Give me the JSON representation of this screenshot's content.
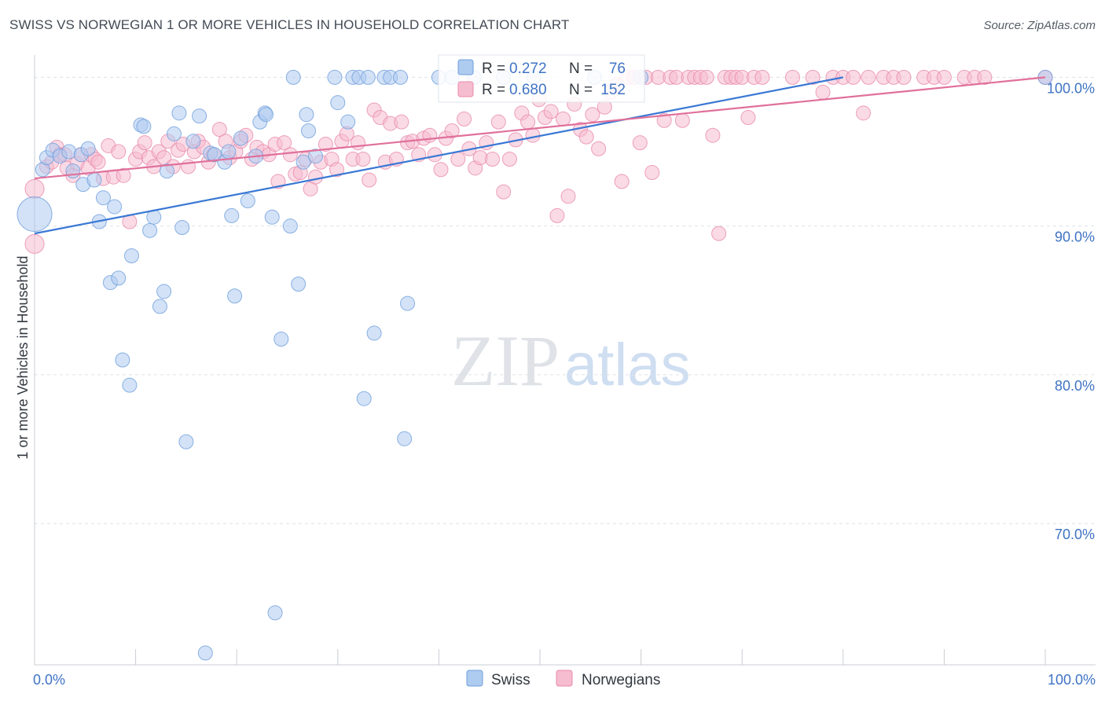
{
  "header": {
    "title": "SWISS VS NORWEGIAN 1 OR MORE VEHICLES IN HOUSEHOLD CORRELATION CHART",
    "source": "Source: ZipAtlas.com"
  },
  "watermark": {
    "part1": "ZIP",
    "part2": "atlas"
  },
  "colors": {
    "swiss_fill": "#aecbf0",
    "swiss_stroke": "#6f9fdc",
    "swiss_line": "#3a78d4",
    "norw_fill": "#f6bccf",
    "norw_stroke": "#e98aab",
    "norw_line": "#e0709a",
    "tick_text": "#3f73c4",
    "grid": "#dde1e6"
  },
  "chart_data": {
    "type": "scatter",
    "title": "SWISS VS NORWEGIAN 1 OR MORE VEHICLES IN HOUSEHOLD CORRELATION CHART",
    "xlabel": "",
    "ylabel": "1 or more Vehicles in Household",
    "xlim": [
      0,
      100
    ],
    "ylim": [
      60.5,
      101.5
    ],
    "x_tick_labels": [
      "0.0%",
      "100.0%"
    ],
    "y_ticks": [
      70,
      80,
      90,
      100
    ],
    "y_tick_labels": [
      "70.0%",
      "80.0%",
      "90.0%",
      "100.0%"
    ],
    "legend_position": "top-center",
    "stats": [
      {
        "series": "Swiss",
        "r_label": "R =",
        "r": "0.272",
        "n_label": "N =",
        "n": "76"
      },
      {
        "series": "Norwegians",
        "r_label": "R =",
        "r": "0.680",
        "n_label": "N =",
        "n": "152"
      }
    ],
    "series": [
      {
        "name": "Swiss",
        "trend": {
          "x": [
            0,
            80
          ],
          "y": [
            89.5,
            100.0
          ]
        },
        "points": [
          [
            0,
            90.8,
            22
          ],
          [
            0.8,
            93.8,
            9
          ],
          [
            1.2,
            94.6,
            9
          ],
          [
            1.8,
            95.1,
            9
          ],
          [
            2.5,
            94.7,
            9
          ],
          [
            3.4,
            95.0,
            9
          ],
          [
            4.6,
            94.8,
            9
          ],
          [
            5.3,
            95.2,
            9
          ],
          [
            3.8,
            93.7,
            9
          ],
          [
            4.8,
            92.8,
            9
          ],
          [
            5.9,
            93.1,
            9
          ],
          [
            6.4,
            90.3,
            9
          ],
          [
            6.8,
            91.9,
            9
          ],
          [
            7.5,
            86.2,
            9
          ],
          [
            7.9,
            91.3,
            9
          ],
          [
            8.3,
            86.5,
            9
          ],
          [
            8.7,
            81.0,
            9
          ],
          [
            9.4,
            79.3,
            9
          ],
          [
            9.6,
            88.0,
            9
          ],
          [
            10.5,
            96.8,
            9
          ],
          [
            10.8,
            96.7,
            9
          ],
          [
            11.4,
            89.7,
            9
          ],
          [
            11.8,
            90.6,
            9
          ],
          [
            12.4,
            84.6,
            9
          ],
          [
            12.8,
            85.6,
            9
          ],
          [
            13.1,
            93.7,
            9
          ],
          [
            13.8,
            96.2,
            9
          ],
          [
            14.3,
            97.6,
            9
          ],
          [
            14.6,
            89.9,
            9
          ],
          [
            15.0,
            75.5,
            9
          ],
          [
            15.7,
            95.7,
            9
          ],
          [
            16.3,
            97.4,
            9
          ],
          [
            16.9,
            61.3,
            9
          ],
          [
            17.4,
            94.9,
            9
          ],
          [
            17.8,
            94.8,
            9
          ],
          [
            18.8,
            94.3,
            9
          ],
          [
            19.2,
            95.0,
            9
          ],
          [
            19.5,
            90.7,
            9
          ],
          [
            19.8,
            85.3,
            9
          ],
          [
            20.4,
            95.9,
            9
          ],
          [
            21.1,
            91.7,
            9
          ],
          [
            21.9,
            94.7,
            9
          ],
          [
            22.3,
            97.0,
            9
          ],
          [
            22.8,
            97.6,
            9
          ],
          [
            22.9,
            97.5,
            9
          ],
          [
            23.5,
            90.6,
            9
          ],
          [
            23.8,
            64.0,
            9
          ],
          [
            24.4,
            82.4,
            9
          ],
          [
            25.3,
            90.0,
            9
          ],
          [
            25.6,
            100.0,
            9
          ],
          [
            26.1,
            86.1,
            9
          ],
          [
            26.6,
            94.3,
            9
          ],
          [
            26.9,
            97.5,
            9
          ],
          [
            27.1,
            96.4,
            9
          ],
          [
            27.8,
            94.7,
            9
          ],
          [
            29.7,
            100.0,
            9
          ],
          [
            30.0,
            98.3,
            9
          ],
          [
            31.0,
            97.0,
            9
          ],
          [
            31.5,
            100.0,
            9
          ],
          [
            32.1,
            100.0,
            9
          ],
          [
            32.6,
            78.4,
            9
          ],
          [
            33.0,
            100.0,
            9
          ],
          [
            33.6,
            82.8,
            9
          ],
          [
            34.6,
            100.0,
            9
          ],
          [
            35.2,
            100.0,
            9
          ],
          [
            36.2,
            100.0,
            9
          ],
          [
            36.6,
            75.7,
            9
          ],
          [
            36.9,
            84.8,
            9
          ],
          [
            40.0,
            100.0,
            9
          ],
          [
            41.3,
            100.0,
            9
          ],
          [
            43.5,
            100.0,
            9
          ],
          [
            46.4,
            100.0,
            9
          ],
          [
            49.4,
            100.0,
            9
          ],
          [
            55.4,
            100.0,
            9
          ],
          [
            60.0,
            100.0,
            9
          ],
          [
            100,
            100.0,
            9
          ]
        ]
      },
      {
        "name": "Norwegians",
        "trend": {
          "x": [
            0,
            100
          ],
          "y": [
            93.2,
            100.0
          ]
        },
        "points": [
          [
            0,
            92.5,
            12
          ],
          [
            0,
            88.8,
            12
          ],
          [
            1.2,
            94.0,
            9
          ],
          [
            1.7,
            94.3,
            9
          ],
          [
            2.2,
            95.3,
            9
          ],
          [
            2.5,
            94.8,
            9
          ],
          [
            3.0,
            94.8,
            9
          ],
          [
            3.2,
            93.9,
            9
          ],
          [
            3.8,
            93.4,
            9
          ],
          [
            4.2,
            94.2,
            9
          ],
          [
            4.6,
            94.8,
            9
          ],
          [
            5.3,
            93.9,
            9
          ],
          [
            5.6,
            94.8,
            9
          ],
          [
            6.0,
            94.5,
            9
          ],
          [
            6.3,
            94.3,
            9
          ],
          [
            6.8,
            93.2,
            9
          ],
          [
            7.3,
            95.4,
            9
          ],
          [
            7.8,
            93.3,
            9
          ],
          [
            8.3,
            95.0,
            9
          ],
          [
            8.8,
            93.4,
            9
          ],
          [
            9.4,
            90.3,
            9
          ],
          [
            10.0,
            94.5,
            9
          ],
          [
            10.4,
            95.0,
            9
          ],
          [
            10.9,
            95.6,
            9
          ],
          [
            11.3,
            94.6,
            9
          ],
          [
            11.8,
            94.0,
            9
          ],
          [
            12.3,
            95.0,
            9
          ],
          [
            12.8,
            94.6,
            9
          ],
          [
            13.2,
            95.7,
            9
          ],
          [
            13.7,
            94.0,
            9
          ],
          [
            14.2,
            95.1,
            9
          ],
          [
            14.7,
            95.5,
            9
          ],
          [
            15.2,
            94.0,
            9
          ],
          [
            15.8,
            95.0,
            9
          ],
          [
            16.2,
            95.7,
            9
          ],
          [
            16.7,
            95.3,
            9
          ],
          [
            17.2,
            94.3,
            9
          ],
          [
            17.7,
            94.8,
            9
          ],
          [
            18.3,
            96.5,
            9
          ],
          [
            18.9,
            95.7,
            9
          ],
          [
            19.3,
            94.6,
            9
          ],
          [
            19.9,
            95.0,
            9
          ],
          [
            20.4,
            95.7,
            9
          ],
          [
            20.9,
            96.1,
            9
          ],
          [
            21.5,
            94.5,
            9
          ],
          [
            22.0,
            95.3,
            9
          ],
          [
            22.6,
            95.0,
            9
          ],
          [
            23.2,
            94.8,
            9
          ],
          [
            23.8,
            95.5,
            9
          ],
          [
            24.1,
            93.0,
            9
          ],
          [
            24.7,
            95.6,
            9
          ],
          [
            25.3,
            94.8,
            9
          ],
          [
            25.8,
            93.5,
            9
          ],
          [
            26.3,
            93.6,
            9
          ],
          [
            26.8,
            94.5,
            9
          ],
          [
            27.3,
            92.5,
            9
          ],
          [
            27.8,
            93.3,
            9
          ],
          [
            28.3,
            94.3,
            9
          ],
          [
            28.8,
            95.5,
            9
          ],
          [
            29.4,
            94.5,
            9
          ],
          [
            29.9,
            93.8,
            9
          ],
          [
            30.4,
            95.7,
            9
          ],
          [
            30.9,
            96.2,
            9
          ],
          [
            31.5,
            94.5,
            9
          ],
          [
            32.0,
            95.6,
            9
          ],
          [
            32.5,
            94.5,
            9
          ],
          [
            33.1,
            93.1,
            9
          ],
          [
            33.6,
            97.8,
            9
          ],
          [
            34.2,
            97.3,
            9
          ],
          [
            34.7,
            94.3,
            9
          ],
          [
            35.2,
            96.9,
            9
          ],
          [
            35.8,
            94.5,
            9
          ],
          [
            36.3,
            97.0,
            9
          ],
          [
            36.9,
            95.6,
            9
          ],
          [
            37.4,
            95.7,
            9
          ],
          [
            38.0,
            94.8,
            9
          ],
          [
            38.5,
            95.9,
            9
          ],
          [
            39.1,
            96.1,
            9
          ],
          [
            39.6,
            94.8,
            9
          ],
          [
            40.2,
            93.8,
            9
          ],
          [
            40.7,
            95.9,
            9
          ],
          [
            41.3,
            96.4,
            9
          ],
          [
            41.9,
            94.5,
            9
          ],
          [
            42.5,
            97.2,
            9
          ],
          [
            43.0,
            95.2,
            9
          ],
          [
            43.6,
            93.9,
            9
          ],
          [
            44.1,
            94.6,
            9
          ],
          [
            44.7,
            95.6,
            9
          ],
          [
            45.3,
            94.5,
            9
          ],
          [
            45.9,
            97.0,
            9
          ],
          [
            46.4,
            92.3,
            9
          ],
          [
            47.0,
            94.5,
            9
          ],
          [
            47.6,
            95.8,
            9
          ],
          [
            48.2,
            97.6,
            9
          ],
          [
            48.8,
            97.0,
            9
          ],
          [
            49.3,
            96.1,
            9
          ],
          [
            49.9,
            98.5,
            9
          ],
          [
            50.5,
            97.3,
            9
          ],
          [
            51.1,
            97.7,
            9
          ],
          [
            51.7,
            90.7,
            9
          ],
          [
            52.3,
            97.2,
            9
          ],
          [
            52.8,
            92.0,
            9
          ],
          [
            53.4,
            98.2,
            9
          ],
          [
            54.0,
            96.5,
            9
          ],
          [
            54.6,
            96.0,
            9
          ],
          [
            55.2,
            97.5,
            9
          ],
          [
            55.8,
            95.2,
            9
          ],
          [
            56.4,
            98.0,
            9
          ],
          [
            57.0,
            99.0,
            9
          ],
          [
            57.6,
            99.5,
            9
          ],
          [
            58.1,
            93.0,
            9
          ],
          [
            58.7,
            100.0,
            9
          ],
          [
            59.3,
            100.0,
            9
          ],
          [
            59.9,
            95.6,
            9
          ],
          [
            60.5,
            100.0,
            9
          ],
          [
            61.1,
            93.6,
            9
          ],
          [
            61.7,
            100.0,
            9
          ],
          [
            62.3,
            97.1,
            9
          ],
          [
            62.9,
            100.0,
            9
          ],
          [
            63.5,
            100.0,
            9
          ],
          [
            64.1,
            97.1,
            9
          ],
          [
            64.7,
            100.0,
            9
          ],
          [
            65.3,
            100.0,
            9
          ],
          [
            65.9,
            100.0,
            9
          ],
          [
            66.5,
            100.0,
            9
          ],
          [
            67.1,
            96.1,
            9
          ],
          [
            67.7,
            89.5,
            9
          ],
          [
            68.3,
            100.0,
            9
          ],
          [
            68.9,
            100.0,
            9
          ],
          [
            69.4,
            100.0,
            9
          ],
          [
            70.0,
            100.0,
            9
          ],
          [
            70.6,
            97.3,
            9
          ],
          [
            71.2,
            100.0,
            9
          ],
          [
            72.0,
            100.0,
            9
          ],
          [
            75.0,
            100.0,
            9
          ],
          [
            77.0,
            100.0,
            9
          ],
          [
            78.0,
            99.0,
            9
          ],
          [
            79.0,
            100.0,
            9
          ],
          [
            80.0,
            100.0,
            9
          ],
          [
            81.0,
            100.0,
            9
          ],
          [
            82.0,
            97.6,
            9
          ],
          [
            82.5,
            100.0,
            9
          ],
          [
            84.0,
            100.0,
            9
          ],
          [
            85.0,
            100.0,
            9
          ],
          [
            86.0,
            100.0,
            9
          ],
          [
            88.0,
            100.0,
            9
          ],
          [
            89.0,
            100.0,
            9
          ],
          [
            90.0,
            100.0,
            9
          ],
          [
            92.0,
            100.0,
            9
          ],
          [
            93.0,
            100.0,
            9
          ],
          [
            94.0,
            100.0,
            9
          ],
          [
            100,
            100.0,
            9
          ]
        ]
      }
    ]
  }
}
